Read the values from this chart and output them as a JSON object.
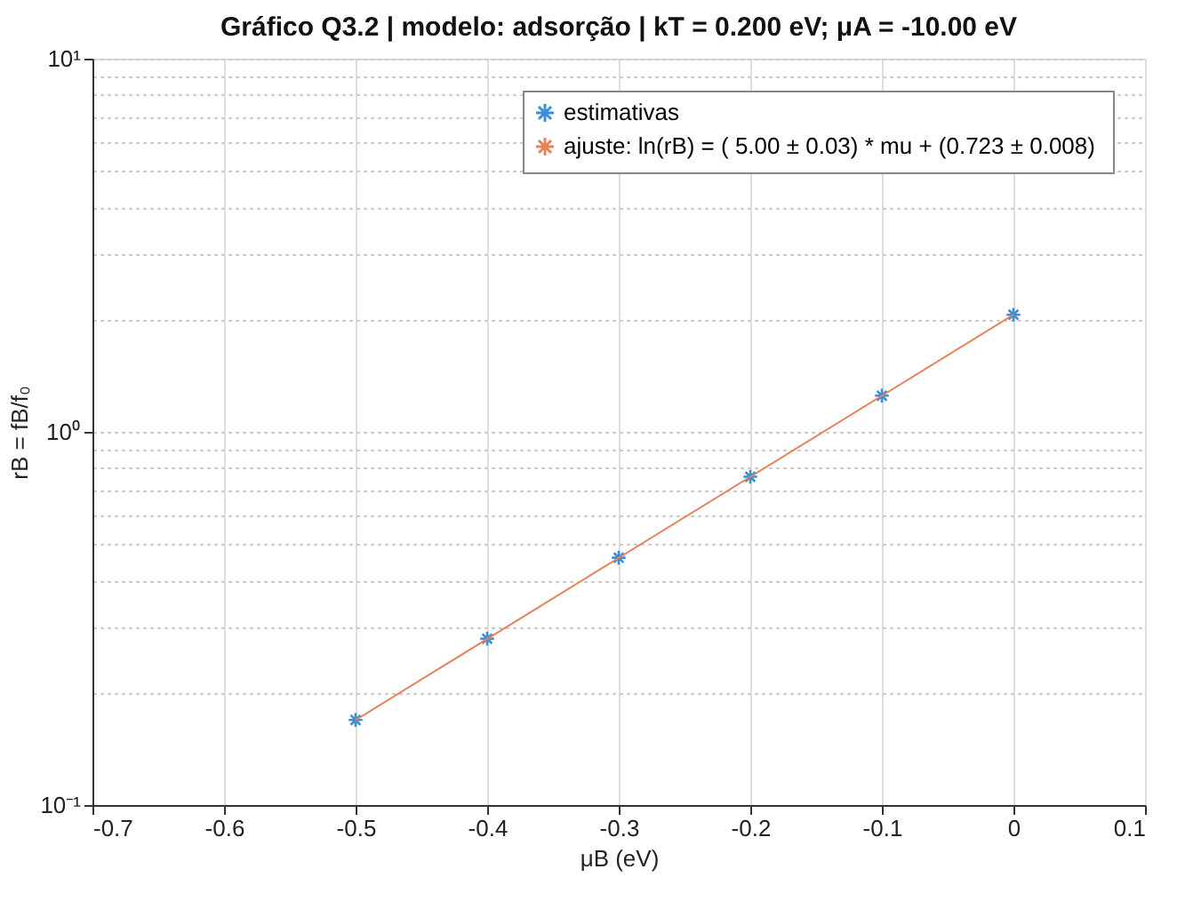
{
  "chart_data": {
    "type": "scatter",
    "title": "Gráfico Q3.2 | modelo: adsorção | kT = 0.200 eV; μA = -10.00 eV",
    "xlabel": "μB (eV)",
    "ylabel": "rB = fB/f₀",
    "series": [
      {
        "name": "estimativas",
        "color": "#3b8fd6",
        "marker": "cross",
        "x": [
          -0.5,
          -0.4,
          -0.3,
          -0.2,
          -0.1,
          0
        ],
        "values": [
          0.169,
          0.279,
          0.46,
          0.758,
          1.25,
          2.06
        ],
        "errors": [
          0.004,
          0.006,
          0.008,
          0.012,
          0.015,
          0.02
        ]
      },
      {
        "name": "ajuste: ln(rB) = ( 5.00 ±  0.03) * mu + (0.723 ± 0.008)",
        "type": "line",
        "color": "#e8825a",
        "line_style": "solid",
        "x": [
          -0.5,
          0
        ],
        "values": [
          0.169,
          2.06
        ]
      }
    ],
    "xlim": [
      -0.7,
      0.1
    ],
    "xticks": [
      -0.7,
      -0.6,
      -0.5,
      -0.4,
      -0.3,
      -0.2,
      -0.1,
      0,
      0.1
    ],
    "ylim": [
      0.1,
      10
    ],
    "log": "y",
    "yticks": [
      {
        "value": 0.1,
        "label": "10⁻¹"
      },
      {
        "value": 0.2,
        "label": null
      },
      {
        "value": 0.3,
        "label": null
      },
      {
        "value": 0.4,
        "label": null
      },
      {
        "value": 0.5,
        "label": null
      },
      {
        "value": 0.6,
        "label": null
      },
      {
        "value": 0.7,
        "label": null
      },
      {
        "value": 0.8,
        "label": null
      },
      {
        "value": 0.9,
        "label": null
      },
      {
        "value": 1,
        "label": "10⁰"
      },
      {
        "value": 2,
        "label": null
      },
      {
        "value": 3,
        "label": null
      },
      {
        "value": 4,
        "label": null
      },
      {
        "value": 5,
        "label": null
      },
      {
        "value": 6,
        "label": null
      },
      {
        "value": 7,
        "label": null
      },
      {
        "value": 8,
        "label": null
      },
      {
        "value": 9,
        "label": null
      },
      {
        "value": 10,
        "label": "10¹"
      }
    ],
    "grid": true,
    "legend": "top right"
  }
}
